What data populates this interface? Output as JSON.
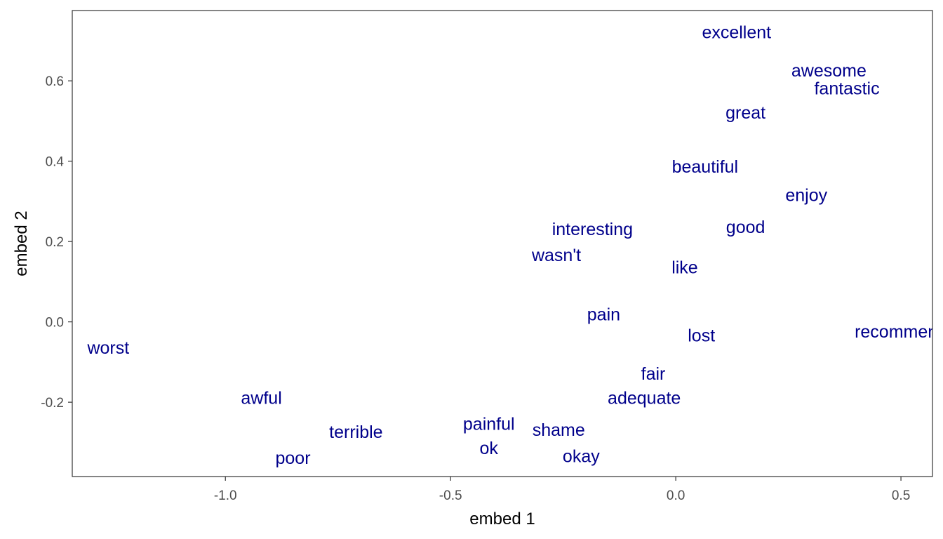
{
  "chart_data": {
    "type": "scatter",
    "title": "",
    "xlabel": "embed 1",
    "ylabel": "embed 2",
    "xlim": [
      -1.34,
      0.57
    ],
    "ylim": [
      -0.385,
      0.775
    ],
    "x_ticks": [
      {
        "value": -1.0,
        "label": "-1.0"
      },
      {
        "value": -0.5,
        "label": "-0.5"
      },
      {
        "value": 0.0,
        "label": "0.0"
      },
      {
        "value": 0.5,
        "label": "0.5"
      }
    ],
    "y_ticks": [
      {
        "value": -0.2,
        "label": "-0.2"
      },
      {
        "value": 0.0,
        "label": "0.0"
      },
      {
        "value": 0.2,
        "label": "0.2"
      },
      {
        "value": 0.4,
        "label": "0.4"
      },
      {
        "value": 0.6,
        "label": "0.6"
      }
    ],
    "grid": false,
    "legend": "none",
    "label_color": "#00008B",
    "points": [
      {
        "label": "excellent",
        "x": 0.135,
        "y": 0.72
      },
      {
        "label": "awesome",
        "x": 0.34,
        "y": 0.625
      },
      {
        "label": "fantastic",
        "x": 0.38,
        "y": 0.58
      },
      {
        "label": "great",
        "x": 0.155,
        "y": 0.52
      },
      {
        "label": "beautiful",
        "x": 0.065,
        "y": 0.385
      },
      {
        "label": "enjoy",
        "x": 0.29,
        "y": 0.315
      },
      {
        "label": "interesting",
        "x": -0.185,
        "y": 0.23
      },
      {
        "label": "good",
        "x": 0.155,
        "y": 0.235
      },
      {
        "label": "wasn't",
        "x": -0.265,
        "y": 0.165
      },
      {
        "label": "like",
        "x": 0.02,
        "y": 0.135
      },
      {
        "label": "pain",
        "x": -0.16,
        "y": 0.018
      },
      {
        "label": "lost",
        "x": 0.057,
        "y": -0.035
      },
      {
        "label": "recommend",
        "x": 0.5,
        "y": -0.025
      },
      {
        "label": "worst",
        "x": -1.26,
        "y": -0.065
      },
      {
        "label": "fair",
        "x": -0.05,
        "y": -0.13
      },
      {
        "label": "adequate",
        "x": -0.07,
        "y": -0.19
      },
      {
        "label": "awful",
        "x": -0.92,
        "y": -0.19
      },
      {
        "label": "painful",
        "x": -0.415,
        "y": -0.255
      },
      {
        "label": "shame",
        "x": -0.26,
        "y": -0.27
      },
      {
        "label": "terrible",
        "x": -0.71,
        "y": -0.275
      },
      {
        "label": "ok",
        "x": -0.415,
        "y": -0.315
      },
      {
        "label": "okay",
        "x": -0.21,
        "y": -0.335
      },
      {
        "label": "poor",
        "x": -0.85,
        "y": -0.34
      }
    ]
  }
}
